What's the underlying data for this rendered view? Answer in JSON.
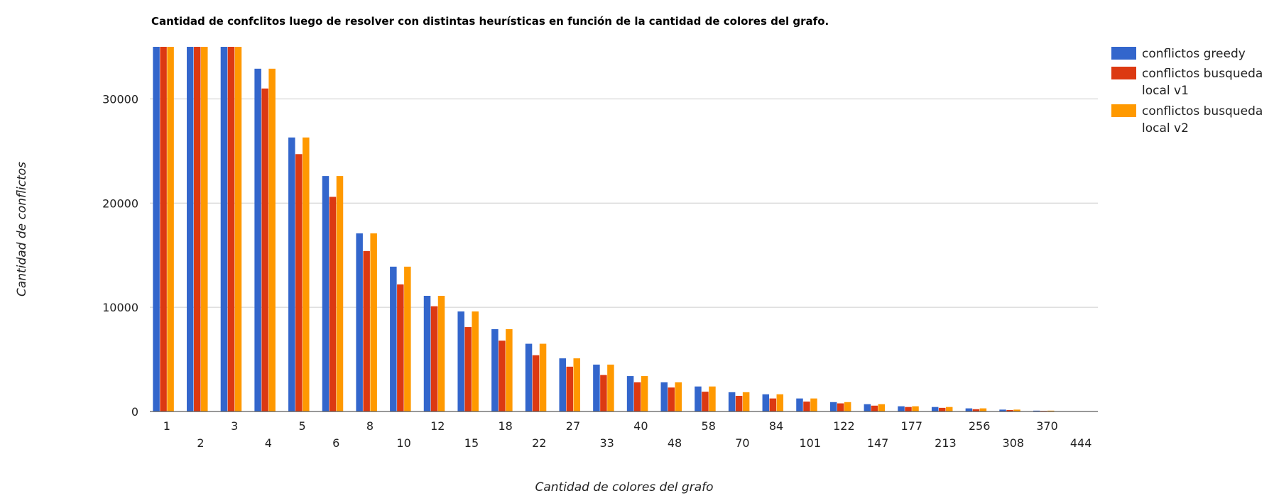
{
  "chart_data": {
    "type": "bar",
    "title": "Cantidad de confclitos luego de resolver con distintas heurísticas en función de la cantidad de colores del grafo.",
    "xlabel": "Cantidad de colores del grafo",
    "ylabel": "Cantidad de conflictos",
    "ylim": [
      0,
      35000
    ],
    "yticks": [
      "0",
      "10000",
      "20000",
      "30000"
    ],
    "grid": true,
    "legend_position": "right",
    "categories": [
      "1",
      "2",
      "3",
      "4",
      "5",
      "6",
      "8",
      "10",
      "12",
      "15",
      "18",
      "22",
      "27",
      "33",
      "40",
      "48",
      "58",
      "70",
      "84",
      "101",
      "122",
      "147",
      "177",
      "213",
      "256",
      "308",
      "370",
      "444"
    ],
    "series": [
      {
        "name": "conflictos greedy",
        "color": "#3366cc",
        "values": [
          35000,
          35000,
          35000,
          32900,
          26300,
          22600,
          17100,
          13900,
          11100,
          9600,
          7900,
          6500,
          5100,
          4500,
          3400,
          2800,
          2400,
          1850,
          1650,
          1250,
          900,
          700,
          500,
          430,
          300,
          180,
          80,
          0
        ]
      },
      {
        "name": "conflictos busqueda local v1",
        "color": "#dc3912",
        "values": [
          35000,
          35000,
          35000,
          31000,
          24700,
          20600,
          15400,
          12200,
          10100,
          8100,
          6800,
          5400,
          4300,
          3500,
          2800,
          2300,
          1900,
          1500,
          1250,
          950,
          780,
          560,
          430,
          350,
          220,
          140,
          60,
          0
        ]
      },
      {
        "name": "conflictos busqueda local v2",
        "color": "#ff9900",
        "values": [
          35000,
          35000,
          35000,
          32900,
          26300,
          22600,
          17100,
          13900,
          11100,
          9600,
          7900,
          6500,
          5100,
          4500,
          3400,
          2800,
          2400,
          1850,
          1650,
          1250,
          900,
          700,
          500,
          430,
          300,
          180,
          80,
          0
        ]
      }
    ],
    "legend_lines": [
      [
        "conflictos greedy"
      ],
      [
        "conflictos busqueda",
        "local v1"
      ],
      [
        "conflictos busqueda",
        "local v2"
      ]
    ]
  }
}
